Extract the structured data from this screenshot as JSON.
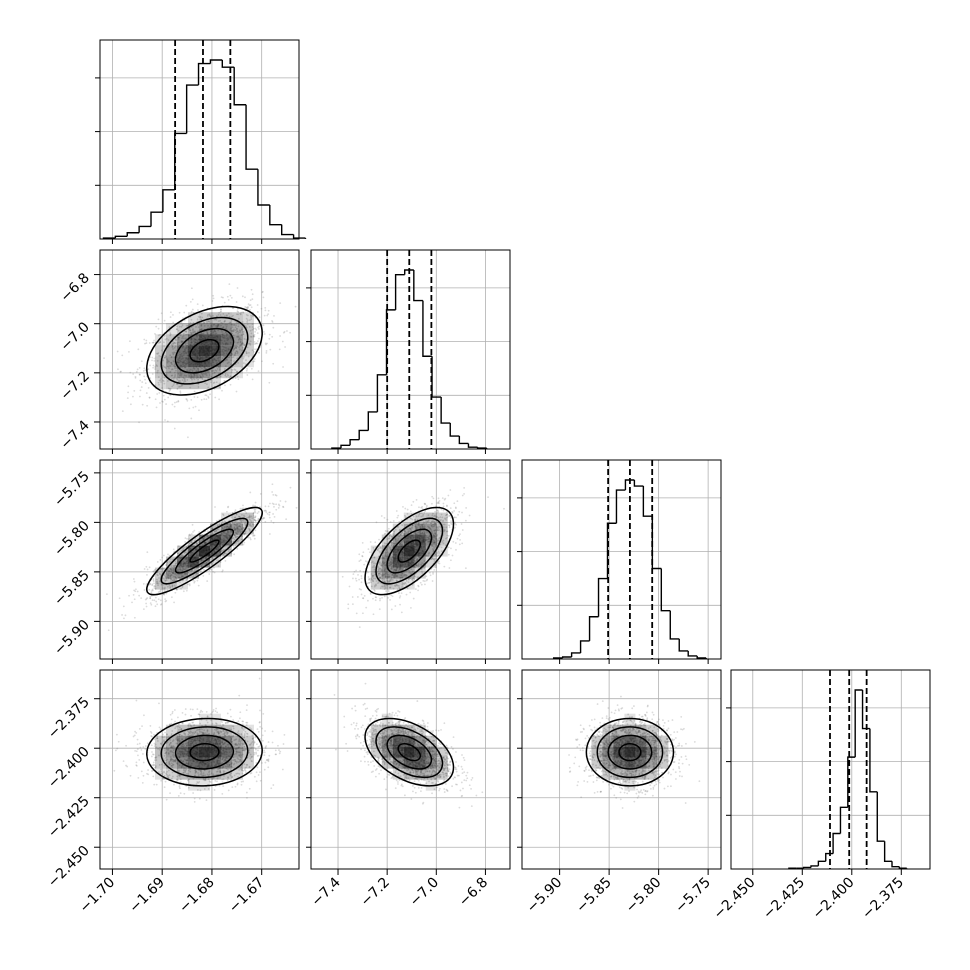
{
  "chart_data": {
    "type": "corner",
    "grid": true,
    "colors": {
      "line": "#000000",
      "grid": "#b0b0b0",
      "scatter": "#7f7f7f",
      "density": "#000000"
    },
    "quantile_labels": [
      "16%",
      "50%",
      "84%"
    ],
    "params": [
      {
        "mean": -1.6815,
        "sd": 0.0058,
        "xlim": [
          -1.7025,
          -1.6625
        ],
        "ticks": [
          -1.7,
          -1.69,
          -1.68,
          -1.67
        ],
        "tick_labels": [
          "−1.70",
          "−1.69",
          "−1.68",
          "−1.67"
        ],
        "quantiles": [
          -1.6874,
          -1.6818,
          -1.6763
        ],
        "hist_counts": [
          1,
          3,
          7,
          14,
          30,
          55,
          118,
          172,
          196,
          200,
          192,
          150,
          78,
          38,
          16,
          5,
          1
        ]
      },
      {
        "mean": -7.11,
        "sd": 0.09,
        "xlim": [
          -7.51,
          -6.7
        ],
        "ticks": [
          -7.4,
          -7.2,
          -7.0,
          -6.8
        ],
        "tick_labels": [
          "−7.4",
          "−7.2",
          "−7.0",
          "−6.8"
        ],
        "quantiles": [
          -7.2,
          -7.11,
          -7.02
        ],
        "hist_counts": [
          1,
          4,
          10,
          20,
          40,
          80,
          150,
          188,
          193,
          160,
          100,
          56,
          28,
          14,
          6,
          2,
          1
        ]
      },
      {
        "mean": -5.829,
        "sd": 0.022,
        "xlim": [
          -5.938,
          -5.737
        ],
        "ticks": [
          -5.9,
          -5.85,
          -5.8,
          -5.75
        ],
        "tick_labels": [
          "−5.90",
          "−5.85",
          "−5.80",
          "−5.75"
        ],
        "quantiles": [
          -5.851,
          -5.829,
          -5.8065
        ],
        "hist_counts": [
          1,
          2,
          6,
          18,
          42,
          80,
          135,
          168,
          178,
          172,
          142,
          90,
          48,
          20,
          8,
          3,
          1
        ]
      },
      {
        "mean": -2.402,
        "sd": 0.0085,
        "xlim": [
          -2.461,
          -2.3605
        ],
        "ticks": [
          -2.45,
          -2.425,
          -2.4,
          -2.375
        ],
        "tick_labels": [
          "−2.450",
          "−2.425",
          "−2.400",
          "−2.375"
        ],
        "quantiles": [
          -2.411,
          -2.4013,
          -2.3925
        ],
        "hist_counts": [
          1,
          1,
          2,
          4,
          10,
          20,
          46,
          80,
          145,
          232,
          182,
          100,
          36,
          10,
          3,
          1
        ]
      }
    ],
    "correlations": [
      [
        1.0,
        0.4,
        0.88,
        0.05
      ],
      [
        0.4,
        1.0,
        0.62,
        -0.45
      ],
      [
        0.88,
        0.62,
        1.0,
        0.0
      ],
      [
        0.05,
        -0.45,
        0.0,
        1.0
      ]
    ]
  }
}
